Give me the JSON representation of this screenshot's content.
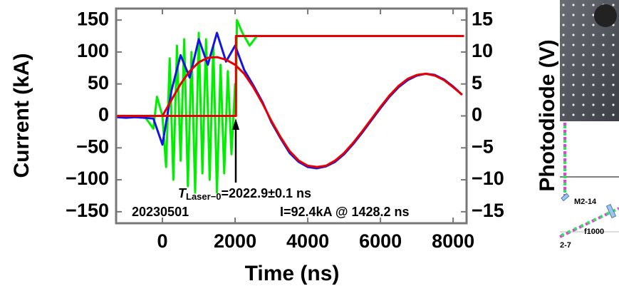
{
  "chart_data": {
    "type": "line",
    "x_label": "Time (ns)",
    "y_label": "Current (kA)",
    "y2_label": "Photodiode (V)",
    "xlim": [
      -1275,
      8370
    ],
    "xticks": [
      0,
      2000,
      4000,
      6000,
      8000
    ],
    "ylim": [
      -168,
      168
    ],
    "yticks": [
      {
        "value": 150,
        "label": "150"
      },
      {
        "value": 100,
        "label": "100"
      },
      {
        "value": 50,
        "label": "50"
      },
      {
        "value": 0,
        "label": "0"
      },
      {
        "value": -50,
        "label": "−50"
      },
      {
        "value": -100,
        "label": "−100"
      },
      {
        "value": -150,
        "label": "−150"
      }
    ],
    "y2lim": [
      -16.8,
      16.8
    ],
    "y2ticks": [
      {
        "value": 15,
        "label": "15"
      },
      {
        "value": 10,
        "label": "10"
      },
      {
        "value": 5,
        "label": "5"
      },
      {
        "value": 0,
        "label": "0"
      },
      {
        "value": -5,
        "label": "−5"
      },
      {
        "value": -10,
        "label": "−10"
      },
      {
        "value": -15,
        "label": "−15"
      }
    ],
    "annotations": {
      "t_symbol": "T",
      "t_subscript": "Laser−0",
      "t_text": "=2022.9±0.1 ns",
      "date": "20230501",
      "peak": "I=92.4kA @ 1428.2 ns"
    },
    "series": [
      {
        "color": "#00ee00",
        "axis": "y2",
        "x": [
          -1250,
          -500,
          -250,
          -150,
          0,
          100,
          200,
          300,
          400,
          500,
          600,
          700,
          800,
          900,
          1000,
          1100,
          1200,
          1300,
          1400,
          1500,
          1600,
          1700,
          1800,
          1900,
          2000,
          2022,
          2050,
          2200,
          2400,
          2600,
          8300
        ],
        "values": [
          0,
          0,
          -2,
          3,
          0,
          -8,
          9,
          -10,
          11,
          -7,
          12,
          -11,
          10,
          -12,
          13,
          -9,
          12,
          -10,
          11,
          -12,
          8,
          -9,
          7,
          -6,
          5,
          0,
          15,
          13,
          11,
          12.5,
          12.5
        ]
      },
      {
        "color": "#1414e6",
        "x": [
          -1250,
          -1000,
          -750,
          -500,
          -250,
          0,
          250,
          500,
          750,
          1000,
          1250,
          1500,
          1750,
          2000,
          2250,
          2500,
          2750,
          3000,
          3250,
          3500,
          3750,
          4000,
          4250,
          4500,
          4750,
          5000,
          5250,
          5500,
          5750,
          6000,
          6250,
          6500,
          6750,
          7000,
          7250,
          7500,
          7750,
          8000,
          8250
        ],
        "values": [
          -2,
          -3,
          -2,
          -3,
          -4,
          -45,
          40,
          95,
          60,
          120,
          80,
          130,
          85,
          110,
          72,
          48,
          22,
          -10,
          -35,
          -58,
          -72,
          -80,
          -82,
          -79,
          -72,
          -60,
          -44,
          -26,
          -7,
          12,
          30,
          45,
          56,
          63,
          66,
          64,
          57,
          46,
          33
        ]
      },
      {
        "color": "#e60000",
        "x": [
          -1250,
          0,
          250,
          500,
          750,
          1000,
          1250,
          1500,
          1750,
          2000,
          2250,
          2500,
          2750,
          3000,
          3250,
          3500,
          3750,
          4000,
          4250,
          4500,
          4750,
          5000,
          5250,
          5500,
          5750,
          6000,
          6250,
          6500,
          6750,
          7000,
          7250,
          7500,
          7750,
          8000,
          8250
        ],
        "values": [
          0,
          0,
          25,
          50,
          70,
          84,
          91,
          92,
          88,
          80,
          66,
          45,
          20,
          -8,
          -33,
          -55,
          -70,
          -78,
          -80,
          -78,
          -70,
          -58,
          -42,
          -24,
          -5,
          14,
          32,
          47,
          58,
          64,
          66,
          63,
          56,
          45,
          33
        ]
      },
      {
        "color": "#e60000",
        "axis": "y2",
        "x": [
          -1250,
          2022.9,
          2022.9,
          8300
        ],
        "values": [
          0,
          0,
          12.5,
          12.5
        ]
      }
    ]
  },
  "side_panel": {
    "labels": [
      "M2-14",
      "f1000",
      "2-7"
    ]
  }
}
